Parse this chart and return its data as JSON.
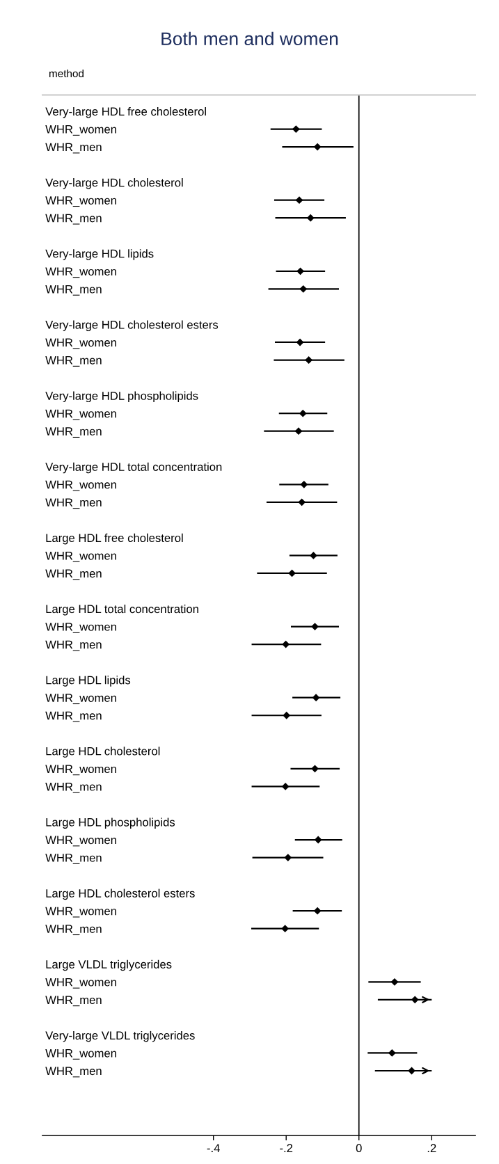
{
  "chart_data": {
    "type": "scatter",
    "orientation": "horizontal",
    "title": "Both men and women",
    "ylabel": "method",
    "categories": [
      "Very-large HDL free cholesterol",
      "WHR_women",
      "WHR_men",
      null,
      "Very-large HDL cholesterol",
      "WHR_women",
      "WHR_men",
      null,
      "Very-large HDL lipids",
      "WHR_women",
      "WHR_men",
      null,
      "Very-large HDL cholesterol esters",
      "WHR_women",
      "WHR_men",
      null,
      "Very-large HDL phospholipids",
      "WHR_women",
      "WHR_men",
      null,
      "Very-large HDL total concentration",
      "WHR_women",
      "WHR_men",
      null,
      "Large HDL free cholesterol",
      "WHR_women",
      "WHR_men",
      null,
      "Large HDL total concentration",
      "WHR_women",
      "WHR_men",
      null,
      "Large HDL lipids",
      "WHR_women",
      "WHR_men",
      null,
      "Large HDL cholesterol",
      "WHR_women",
      "WHR_men",
      null,
      "Large HDL phospholipids",
      "WHR_women",
      "WHR_men",
      null,
      "Large HDL cholesterol esters",
      "WHR_women",
      "WHR_men",
      null,
      "Large VLDL triglycerides",
      "WHR_women",
      "WHR_men",
      null,
      "Very-large VLDL triglycerides",
      "WHR_women",
      "WHR_men"
    ],
    "series": [
      {
        "color": "#000000",
        "values": [
          null,
          -0.173,
          -0.114,
          null,
          null,
          -0.164,
          -0.133,
          null,
          null,
          -0.161,
          -0.153,
          null,
          null,
          -0.162,
          -0.138,
          null,
          null,
          -0.154,
          -0.166,
          null,
          null,
          -0.151,
          -0.157,
          null,
          null,
          -0.125,
          -0.184,
          null,
          null,
          -0.121,
          -0.201,
          null,
          null,
          -0.118,
          -0.199,
          null,
          null,
          -0.121,
          -0.202,
          null,
          null,
          -0.112,
          -0.195,
          null,
          null,
          -0.114,
          -0.203,
          null,
          null,
          0.098,
          0.154,
          null,
          null,
          0.091,
          0.145
        ],
        "errors": [
          null,
          [
            -0.243,
            -0.102
          ],
          [
            -0.211,
            -0.015
          ],
          null,
          null,
          [
            -0.233,
            -0.095
          ],
          [
            -0.23,
            -0.036
          ],
          null,
          null,
          [
            -0.228,
            -0.093
          ],
          [
            -0.249,
            -0.055
          ],
          null,
          null,
          [
            -0.231,
            -0.093
          ],
          [
            -0.234,
            -0.04
          ],
          null,
          null,
          [
            -0.22,
            -0.087
          ],
          [
            -0.261,
            -0.069
          ],
          null,
          null,
          [
            -0.219,
            -0.084
          ],
          [
            -0.254,
            -0.06
          ],
          null,
          null,
          [
            -0.191,
            -0.059
          ],
          [
            -0.28,
            -0.088
          ],
          null,
          null,
          [
            -0.187,
            -0.055
          ],
          [
            -0.295,
            -0.104
          ],
          null,
          null,
          [
            -0.183,
            -0.051
          ],
          [
            -0.295,
            -0.103
          ],
          null,
          null,
          [
            -0.188,
            -0.053
          ],
          [
            -0.295,
            -0.108
          ],
          null,
          null,
          [
            -0.176,
            -0.046
          ],
          [
            -0.293,
            -0.098
          ],
          null,
          null,
          [
            -0.182,
            -0.047
          ],
          [
            -0.296,
            -0.11
          ],
          null,
          null,
          [
            0.026,
            0.17
          ],
          [
            0.052,
            0.2
          ],
          null,
          null,
          [
            0.024,
            0.16
          ],
          [
            0.044,
            0.2
          ]
        ]
      }
    ],
    "marker": "diamond",
    "xlim": [
      -0.87,
      0.32
    ],
    "xticks": [
      {
        "value": -0.4,
        "label": "-.4"
      },
      {
        "value": -0.2,
        "label": "-.2"
      },
      0,
      {
        "value": 0.2,
        "label": ".2"
      }
    ],
    "ref_lines": [
      {
        "axis": "x",
        "value": 0,
        "color": "#000000"
      }
    ],
    "grid": false,
    "legend": false
  }
}
